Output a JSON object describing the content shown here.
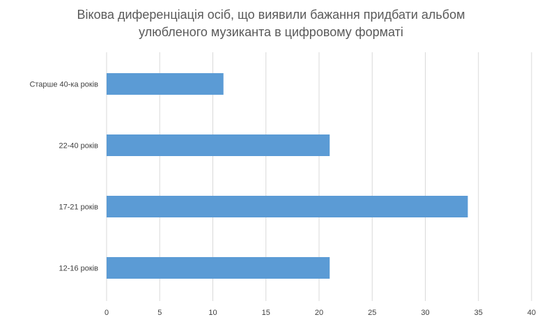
{
  "chart_data": {
    "type": "bar",
    "orientation": "horizontal",
    "title": [
      "Вікова диференціація осіб, що виявили бажання придбати альбом",
      "улюбленого музиканта в цифровому форматі"
    ],
    "categories": [
      "Старше 40-ка років",
      "22-40 років",
      "17-21 років",
      "12-16 років"
    ],
    "values": [
      11,
      21,
      34,
      21
    ],
    "xlim": [
      0,
      40
    ],
    "xticks": [
      "0",
      "5",
      "10",
      "15",
      "20",
      "25",
      "30",
      "35",
      "40"
    ],
    "grid": true,
    "legend": "none",
    "bar_color": "#5b9bd5",
    "grid_color": "#d9d9d9"
  }
}
